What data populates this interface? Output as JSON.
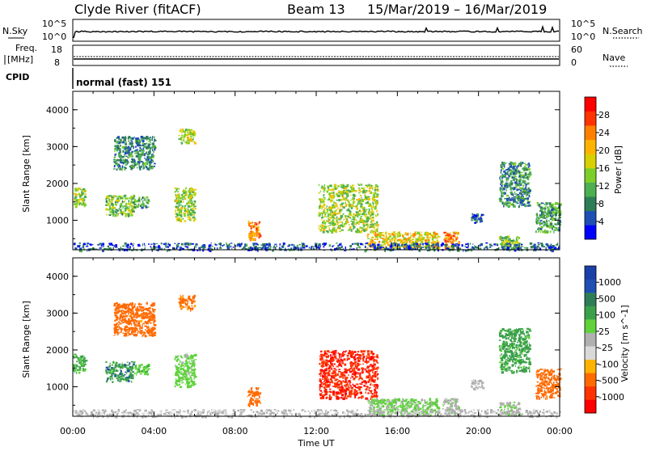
{
  "header": {
    "station": "Clyde River (fitACF)",
    "beam": "Beam 13",
    "dates": "15/Mar/2019 – 16/Mar/2019"
  },
  "strips": {
    "nsky": {
      "left_label": "N.Sky",
      "right_label": "N.Search",
      "left_ticks": [
        "10^5",
        "10^0"
      ],
      "right_ticks": [
        "10^5",
        "10^0"
      ]
    },
    "freq": {
      "left_label_1": "Freq.",
      "left_label_2": "[MHz]",
      "right_label": "Nave",
      "left_ticks": [
        "18",
        "8"
      ],
      "right_ticks": [
        "60",
        "0"
      ]
    },
    "cpid": {
      "left_label": "CPID",
      "mode_text": "normal (fast) 151"
    }
  },
  "chart_data": [
    {
      "type": "heatmap",
      "panel": "power",
      "ylabel": "Slant Range [km]",
      "yticks": [
        "4000",
        "3000",
        "2000",
        "1000"
      ],
      "ylim": [
        200,
        4500
      ],
      "colorbar": {
        "label": "Power [dB]",
        "ticks": [
          "28",
          "24",
          "20",
          "16",
          "12",
          "8",
          "4"
        ],
        "colors": [
          "#0000ff",
          "#1f4fb5",
          "#2e7d55",
          "#4caf50",
          "#7ccf2a",
          "#d8d000",
          "#ffb300",
          "#ff8000",
          "#ff3300",
          "#ff0000"
        ],
        "range": [
          0,
          30
        ]
      },
      "series": [
        {
          "x": [
            0.0,
            0.6
          ],
          "y": [
            1400,
            1900
          ],
          "value": 14
        },
        {
          "x": [
            1.6,
            3.0
          ],
          "y": [
            1150,
            1700
          ],
          "value": 12
        },
        {
          "x": [
            3.0,
            3.7
          ],
          "y": [
            1350,
            1650
          ],
          "value": 10
        },
        {
          "x": [
            5.0,
            6.0
          ],
          "y": [
            1000,
            1900
          ],
          "value": 14
        },
        {
          "x": [
            2.0,
            4.0
          ],
          "y": [
            2400,
            3300
          ],
          "value": 8
        },
        {
          "x": [
            5.2,
            6.0
          ],
          "y": [
            3100,
            3500
          ],
          "value": 16
        },
        {
          "x": [
            8.6,
            9.2
          ],
          "y": [
            500,
            1000
          ],
          "value": 22
        },
        {
          "x": [
            12.1,
            15.0
          ],
          "y": [
            700,
            2000
          ],
          "value": 14
        },
        {
          "x": [
            14.5,
            18.0
          ],
          "y": [
            250,
            700
          ],
          "value": 18
        },
        {
          "x": [
            18.2,
            19.0
          ],
          "y": [
            250,
            700
          ],
          "value": 22
        },
        {
          "x": [
            19.6,
            20.2
          ],
          "y": [
            950,
            1200
          ],
          "value": 6
        },
        {
          "x": [
            21.0,
            22.0
          ],
          "y": [
            250,
            600
          ],
          "value": 12
        },
        {
          "x": [
            21.0,
            22.5
          ],
          "y": [
            1400,
            2600
          ],
          "value": 8
        },
        {
          "x": [
            22.8,
            24.0
          ],
          "y": [
            700,
            1500
          ],
          "value": 10
        },
        {
          "x": [
            0.0,
            24.0
          ],
          "y": [
            200,
            400
          ],
          "value": 5
        }
      ]
    },
    {
      "type": "heatmap",
      "panel": "velocity",
      "ylabel": "Slant Range [km]",
      "yticks": [
        "4000",
        "3000",
        "2000",
        "1000"
      ],
      "ylim": [
        200,
        4500
      ],
      "xticks": [
        "00:00",
        "04:00",
        "08:00",
        "12:00",
        "16:00",
        "20:00",
        "00:00"
      ],
      "xlabel": "Time UT",
      "colorbar": {
        "label": "Velocity [m s^-1]",
        "ticks": [
          "1000",
          "500",
          "100",
          "25",
          "-25",
          "-100",
          "-500",
          "-1000"
        ],
        "colors": [
          "#ff0000",
          "#ff3300",
          "#ff6a00",
          "#ffb300",
          "#d9d9d9",
          "#b0b0b0",
          "#5fd23c",
          "#3aa04a",
          "#2e7d55",
          "#1f4fb5",
          "#1a3fa8"
        ]
      },
      "series": [
        {
          "x": [
            0.0,
            0.6
          ],
          "y": [
            1400,
            1900
          ],
          "value": 600
        },
        {
          "x": [
            1.6,
            3.0
          ],
          "y": [
            1150,
            1700
          ],
          "value": 800
        },
        {
          "x": [
            3.0,
            3.7
          ],
          "y": [
            1350,
            1650
          ],
          "value": 400
        },
        {
          "x": [
            5.0,
            6.0
          ],
          "y": [
            1000,
            1900
          ],
          "value": 150
        },
        {
          "x": [
            2.0,
            4.0
          ],
          "y": [
            2400,
            3300
          ],
          "value": -200
        },
        {
          "x": [
            5.2,
            6.0
          ],
          "y": [
            3100,
            3500
          ],
          "value": -150
        },
        {
          "x": [
            8.6,
            9.2
          ],
          "y": [
            500,
            1000
          ],
          "value": -300
        },
        {
          "x": [
            12.1,
            15.0
          ],
          "y": [
            700,
            2000
          ],
          "value": -900
        },
        {
          "x": [
            14.5,
            18.0
          ],
          "y": [
            250,
            700
          ],
          "value": 120
        },
        {
          "x": [
            18.2,
            19.0
          ],
          "y": [
            250,
            700
          ],
          "value": 80
        },
        {
          "x": [
            19.6,
            20.2
          ],
          "y": [
            950,
            1200
          ],
          "value": 60
        },
        {
          "x": [
            21.0,
            22.0
          ],
          "y": [
            250,
            600
          ],
          "value": 90
        },
        {
          "x": [
            21.0,
            22.5
          ],
          "y": [
            1400,
            2600
          ],
          "value": 700
        },
        {
          "x": [
            22.8,
            24.0
          ],
          "y": [
            700,
            1500
          ],
          "value": -250
        },
        {
          "x": [
            0.0,
            24.0
          ],
          "y": [
            200,
            400
          ],
          "value": 40
        }
      ]
    }
  ]
}
